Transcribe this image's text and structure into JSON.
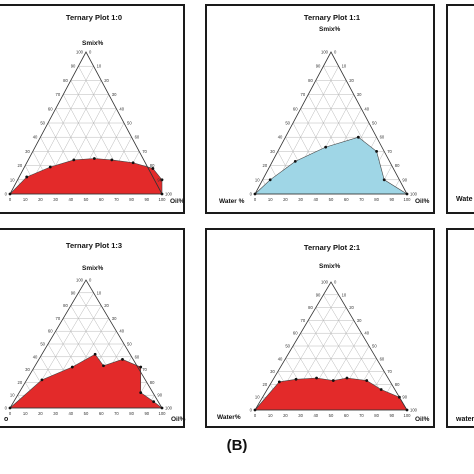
{
  "figure_label": "(B)",
  "right_edge_labels": [
    "Wate",
    "water"
  ],
  "left_edge_labels": [
    "o"
  ],
  "colors": {
    "red_fill": "#e32a2a",
    "blue_fill": "#9fd6e6",
    "frame": "#1a1a1a"
  },
  "chart_data": [
    {
      "type": "area",
      "title": "Ternary Plot 1:0",
      "labels": {
        "top": "Smix%",
        "left": "",
        "right": "Oil%"
      },
      "fill": "red",
      "ticks": [
        "0",
        "10",
        "20",
        "30",
        "40",
        "50",
        "60",
        "70",
        "80",
        "90",
        "100"
      ],
      "boundary": [
        {
          "oil": 100,
          "smix": 0
        },
        {
          "oil": 95,
          "smix": 10
        },
        {
          "oil": 85,
          "smix": 18
        },
        {
          "oil": 70,
          "smix": 22
        },
        {
          "oil": 55,
          "smix": 24
        },
        {
          "oil": 43,
          "smix": 25
        },
        {
          "oil": 30,
          "smix": 24
        },
        {
          "oil": 17,
          "smix": 19
        },
        {
          "oil": 5,
          "smix": 12
        },
        {
          "oil": 0,
          "smix": 0
        }
      ]
    },
    {
      "type": "area",
      "title": "Ternary Plot 1:1",
      "labels": {
        "top": "Smix%",
        "left": "Water %",
        "right": "Oil%"
      },
      "fill": "blue",
      "ticks": [
        "0",
        "10",
        "20",
        "30",
        "40",
        "50",
        "60",
        "70",
        "80",
        "90",
        "100"
      ],
      "boundary": [
        {
          "oil": 100,
          "smix": 0
        },
        {
          "oil": 80,
          "smix": 10
        },
        {
          "oil": 65,
          "smix": 30
        },
        {
          "oil": 48,
          "smix": 40
        },
        {
          "oil": 30,
          "smix": 33
        },
        {
          "oil": 15,
          "smix": 23
        },
        {
          "oil": 5,
          "smix": 10
        },
        {
          "oil": 0,
          "smix": 0
        }
      ]
    },
    {
      "type": "area",
      "title": "Ternary Plot 1:3",
      "labels": {
        "top": "Smix%",
        "left": "",
        "right": "Oil%"
      },
      "fill": "red",
      "ticks": [
        "0",
        "10",
        "20",
        "30",
        "40",
        "50",
        "60",
        "70",
        "80",
        "90",
        "100"
      ],
      "boundary": [
        {
          "oil": 100,
          "smix": 0
        },
        {
          "oil": 92,
          "smix": 5
        },
        {
          "oil": 80,
          "smix": 12
        },
        {
          "oil": 70,
          "smix": 32
        },
        {
          "oil": 55,
          "smix": 38
        },
        {
          "oil": 45,
          "smix": 33
        },
        {
          "oil": 35,
          "smix": 42
        },
        {
          "oil": 25,
          "smix": 32
        },
        {
          "oil": 10,
          "smix": 22
        },
        {
          "oil": 0,
          "smix": 0
        }
      ]
    },
    {
      "type": "area",
      "title": "Ternary Plot 2:1",
      "labels": {
        "top": "Smix%",
        "left": "Water%",
        "right": "Oil%"
      },
      "fill": "red",
      "ticks": [
        "0",
        "10",
        "20",
        "30",
        "40",
        "50",
        "60",
        "70",
        "80",
        "90",
        "100"
      ],
      "boundary": [
        {
          "oil": 100,
          "smix": 0
        },
        {
          "oil": 90,
          "smix": 10
        },
        {
          "oil": 75,
          "smix": 16
        },
        {
          "oil": 62,
          "smix": 23
        },
        {
          "oil": 48,
          "smix": 25
        },
        {
          "oil": 40,
          "smix": 23
        },
        {
          "oil": 28,
          "smix": 25
        },
        {
          "oil": 15,
          "smix": 24
        },
        {
          "oil": 5,
          "smix": 22
        },
        {
          "oil": 0,
          "smix": 0
        }
      ]
    }
  ]
}
